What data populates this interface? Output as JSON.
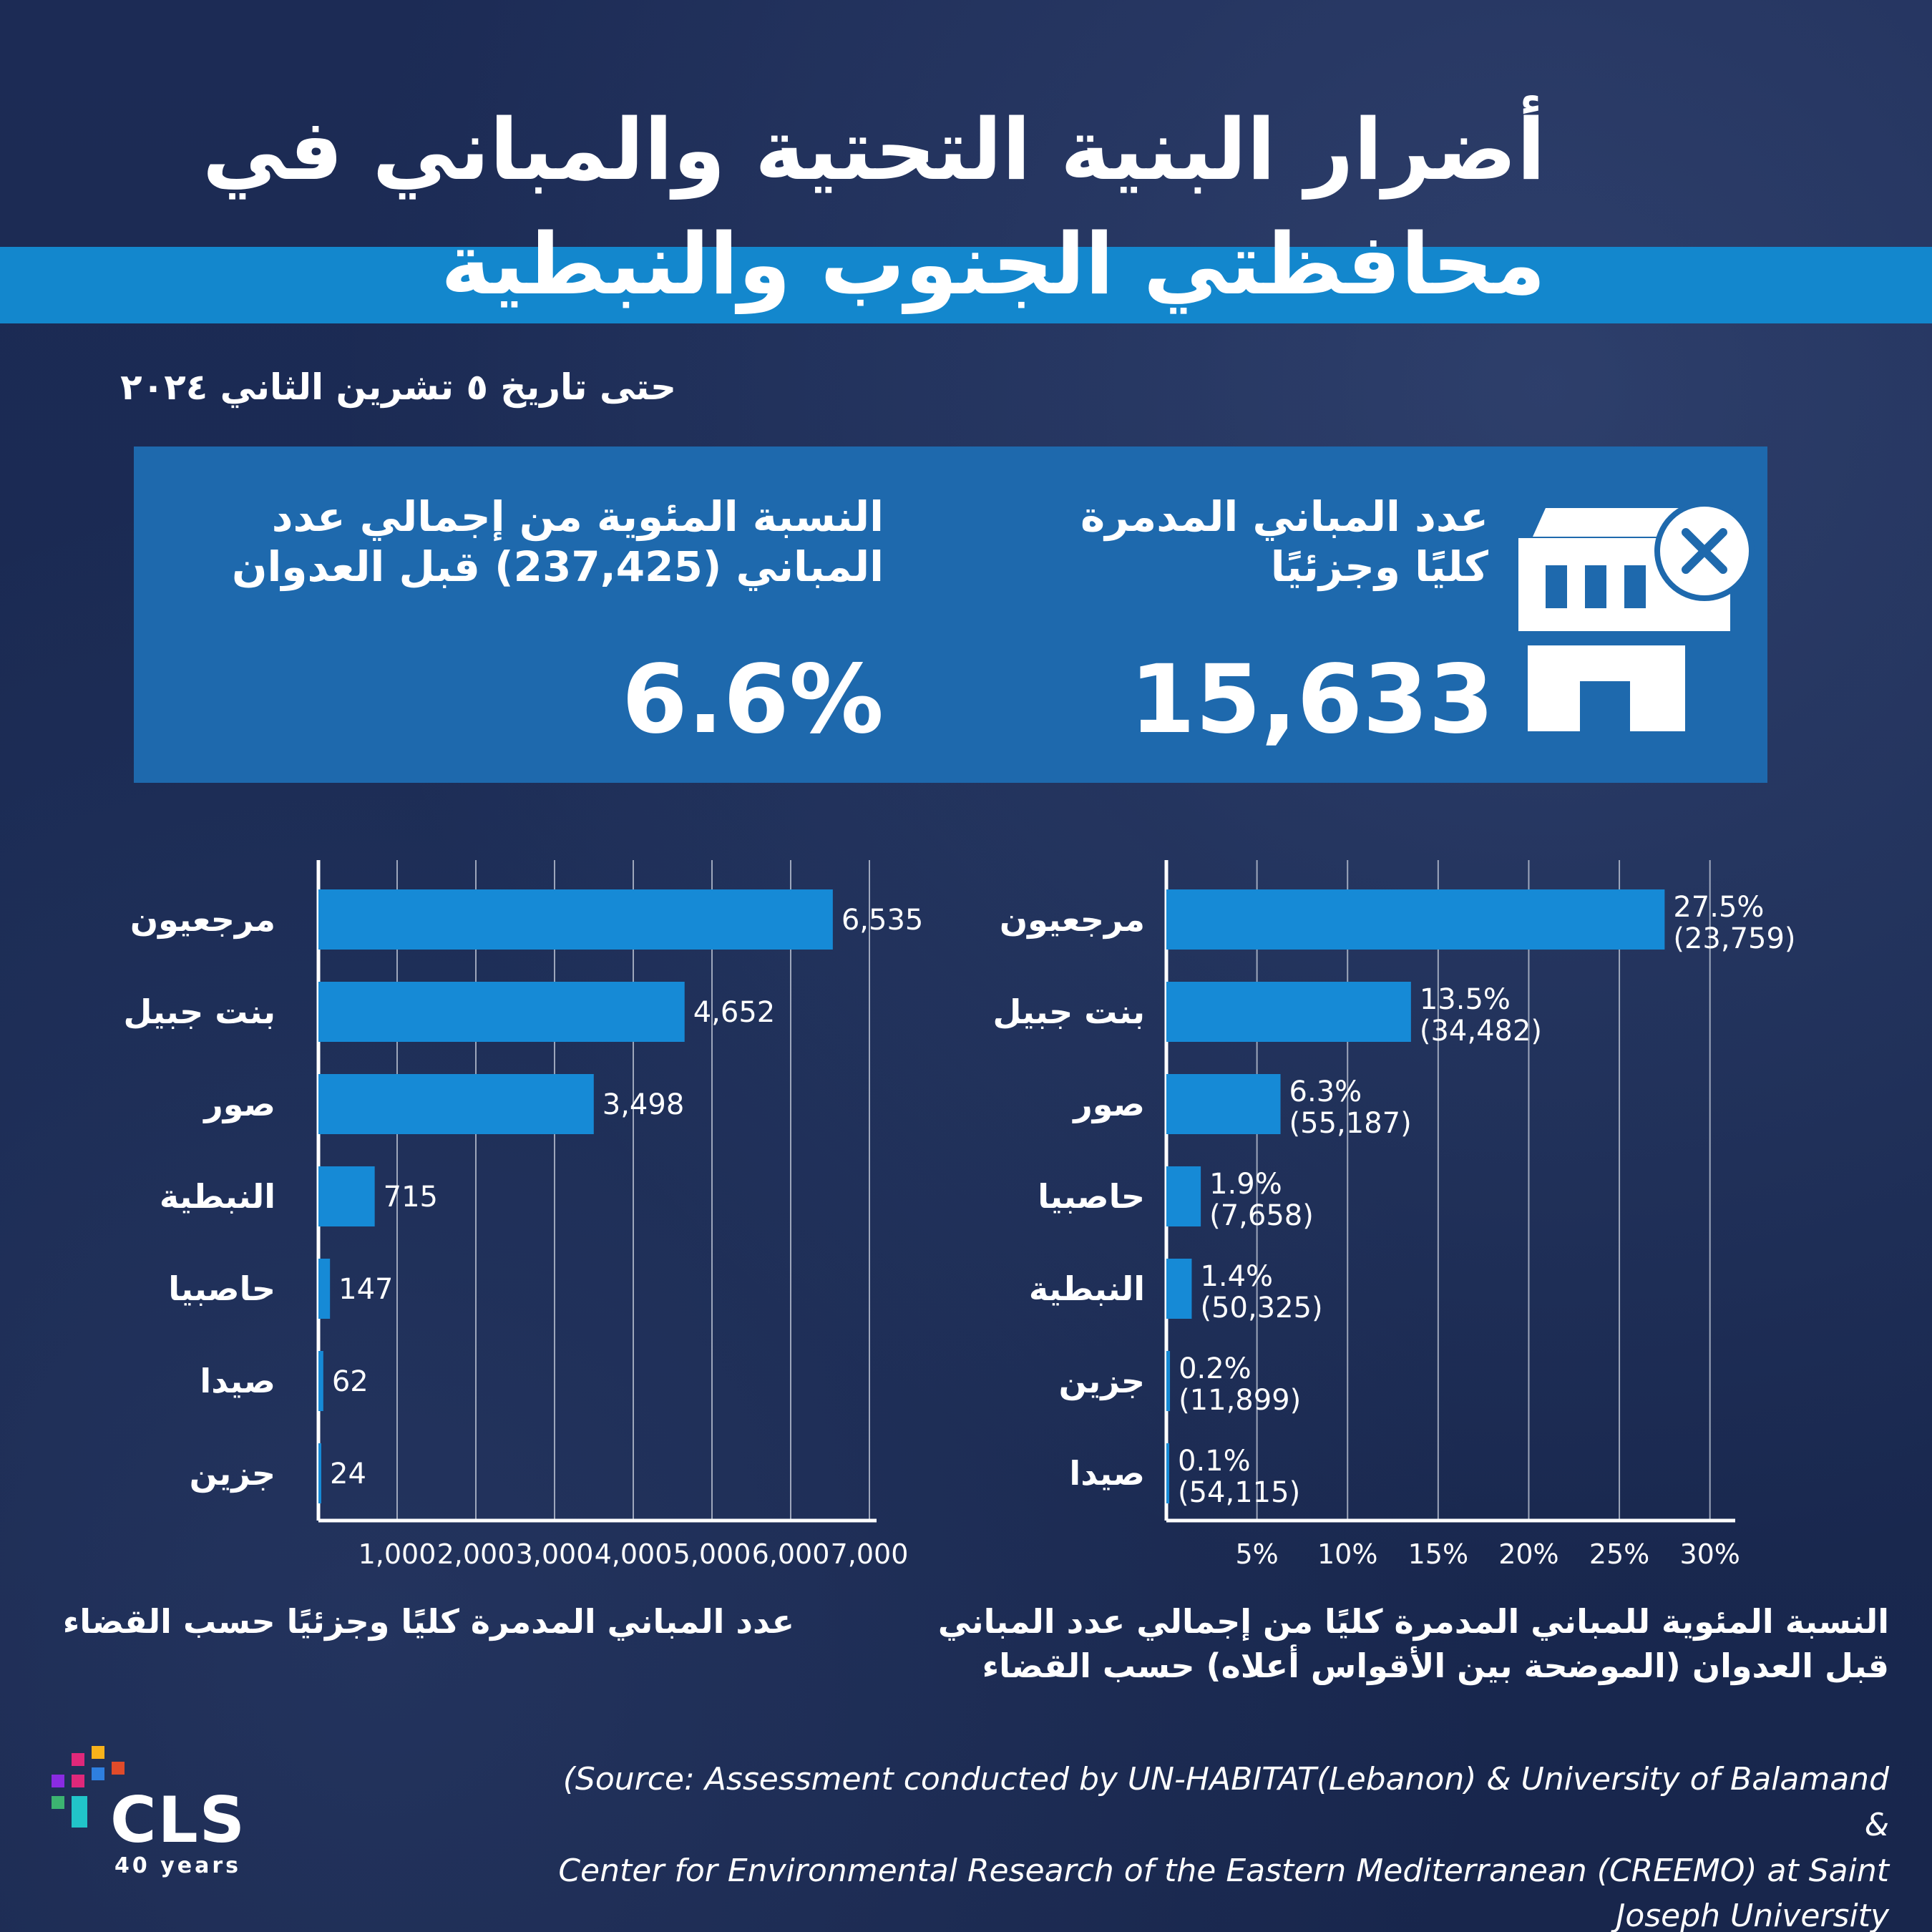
{
  "header": {
    "title_line1": "أضرار البنية التحتية والمباني في",
    "title_line2": "محافظتي الجنوب والنبطية",
    "date": "حتى تاريخ ٥ تشرين الثاني ٢٠٢٤"
  },
  "kpis": {
    "destroyed": {
      "label_line1": "عدد المباني المدمرة",
      "label_line2": "كليًا وجزئيًا",
      "value": "15,633"
    },
    "percentage": {
      "label_line1": "النسبة المئوية من إجمالي عدد",
      "label_line2": "المباني (237,425)  قبل العدوان",
      "value": "6.6%"
    }
  },
  "icons": {
    "building": "building-destroyed-icon"
  },
  "colors": {
    "background": "#1b2a52",
    "accent": "#1387cd",
    "kpi_box": "#1e69ad",
    "bar": "#168ad6",
    "grid": "#c8cfdc"
  },
  "chart_data": [
    {
      "type": "bar",
      "orientation": "horizontal",
      "categories": [
        "مرجعيون",
        "بنت جبيل",
        "صور",
        "النبطية",
        "حاصبيا",
        "صيدا",
        "جزين"
      ],
      "values": [
        6535,
        4652,
        3498,
        715,
        147,
        62,
        24
      ],
      "value_labels": [
        "6,535",
        "4,652",
        "3,498",
        "715",
        "147",
        "62",
        "24"
      ],
      "xlim": [
        0,
        7000
      ],
      "xticks": [
        1000,
        2000,
        3000,
        4000,
        5000,
        6000,
        7000
      ],
      "xtick_labels": [
        "1,000",
        "2,000",
        "3,000",
        "4,000",
        "5,000",
        "6,000",
        "7,000"
      ],
      "caption": "عدد المباني المدمرة كليًا وجزئيًا حسب القضاء",
      "grid": true
    },
    {
      "type": "bar",
      "orientation": "horizontal",
      "categories": [
        "مرجعيون",
        "بنت جبيل",
        "صور",
        "حاصبيا",
        "النبطية",
        "جزين",
        "صيدا"
      ],
      "values": [
        27.5,
        13.5,
        6.3,
        1.9,
        1.4,
        0.2,
        0.1
      ],
      "value_labels": [
        "27.5%",
        "13.5%",
        "6.3%",
        "1.9%",
        "1.4%",
        "0.2%",
        "0.1%"
      ],
      "totals": [
        "(23,759)",
        "(34,482)",
        "(55,187)",
        "(7,658)",
        "(50,325)",
        "(11,899)",
        "(54,115)"
      ],
      "xlim": [
        0,
        31
      ],
      "xticks": [
        5,
        10,
        15,
        20,
        25,
        30
      ],
      "xtick_labels": [
        "5%",
        "10%",
        "15%",
        "20%",
        "25%",
        "30%"
      ],
      "caption_line1": "النسبة المئوية للمباني المدمرة كليًا من إجمالي عدد المباني",
      "caption_line2": "قبل العدوان (الموضحة بين الأقواس أعلاه) حسب القضاء",
      "grid": true
    }
  ],
  "footer": {
    "source_line1": "(Source: Assessment conducted by UN-HABITAT(Lebanon) & University of Balamand &",
    "source_line2": "Center for Environmental Research of the Eastern Mediterranean (CREEMO) at Saint",
    "source_line3": "Joseph University",
    "logo_text": "CLS",
    "logo_sub": "40 years"
  }
}
